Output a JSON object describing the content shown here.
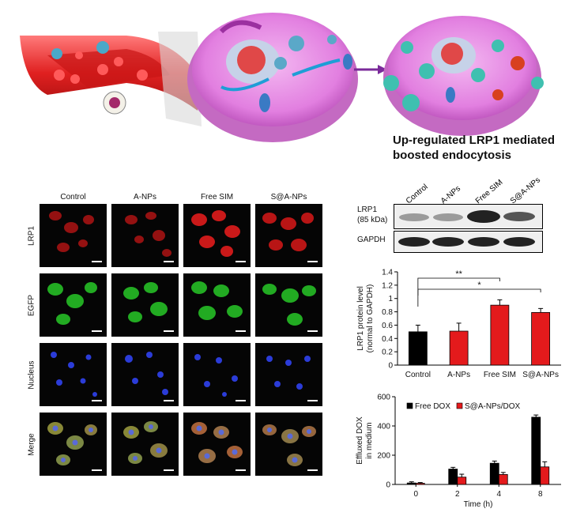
{
  "schematic": {
    "caption_line1": "Up-regulated LRP1 mediated",
    "caption_line2": "boosted endocytosis"
  },
  "microscopy": {
    "columns": [
      "Control",
      "A-NPs",
      "Free SIM",
      "S@A-NPs"
    ],
    "rows": [
      "LRP1",
      "EGFP",
      "Nucleus",
      "Merge"
    ]
  },
  "western_blot": {
    "lanes": [
      "Control",
      "A-NPs",
      "Free SIM",
      "S@A-NPs"
    ],
    "lrp1_label_line1": "LRP1",
    "lrp1_label_line2": "(85 kDa)",
    "gapdh_label": "GAPDH"
  },
  "chart_data": [
    {
      "type": "bar",
      "categories": [
        "Control",
        "A-NPs",
        "Free SIM",
        "S@A-NPs"
      ],
      "values": [
        0.5,
        0.51,
        0.9,
        0.79
      ],
      "errors": [
        0.1,
        0.12,
        0.08,
        0.06
      ],
      "colors": [
        "#000000",
        "#e41a1c",
        "#e41a1c",
        "#e41a1c"
      ],
      "ylabel_line1": "LRP1 protein level",
      "ylabel_line2": "(normal to GAPDH)",
      "ylim": [
        0,
        1.4
      ],
      "yticks": [
        "0",
        "0.2",
        "0.4",
        "0.6",
        "0.8",
        "1",
        "1.2",
        "1.4"
      ],
      "significance": [
        {
          "from": "Control",
          "to": "Free SIM",
          "label": "**"
        },
        {
          "from": "Control",
          "to": "S@A-NPs",
          "label": "*"
        }
      ]
    },
    {
      "type": "bar",
      "categories": [
        "0",
        "2",
        "4",
        "8"
      ],
      "xlabel": "Time (h)",
      "ylabel_line1": "Effluxed DOX",
      "ylabel_line2": "in medium",
      "ylim": [
        0,
        600
      ],
      "yticks": [
        "0",
        "200",
        "400",
        "600"
      ],
      "legend_position": "top",
      "series": [
        {
          "name": "Free DOX",
          "color": "#000000",
          "values": [
            10,
            105,
            145,
            460
          ],
          "errors": [
            8,
            12,
            15,
            15
          ]
        },
        {
          "name": "S@A-NPs/DOX",
          "color": "#e41a1c",
          "values": [
            8,
            50,
            68,
            120
          ],
          "errors": [
            5,
            20,
            14,
            35
          ]
        }
      ]
    }
  ]
}
